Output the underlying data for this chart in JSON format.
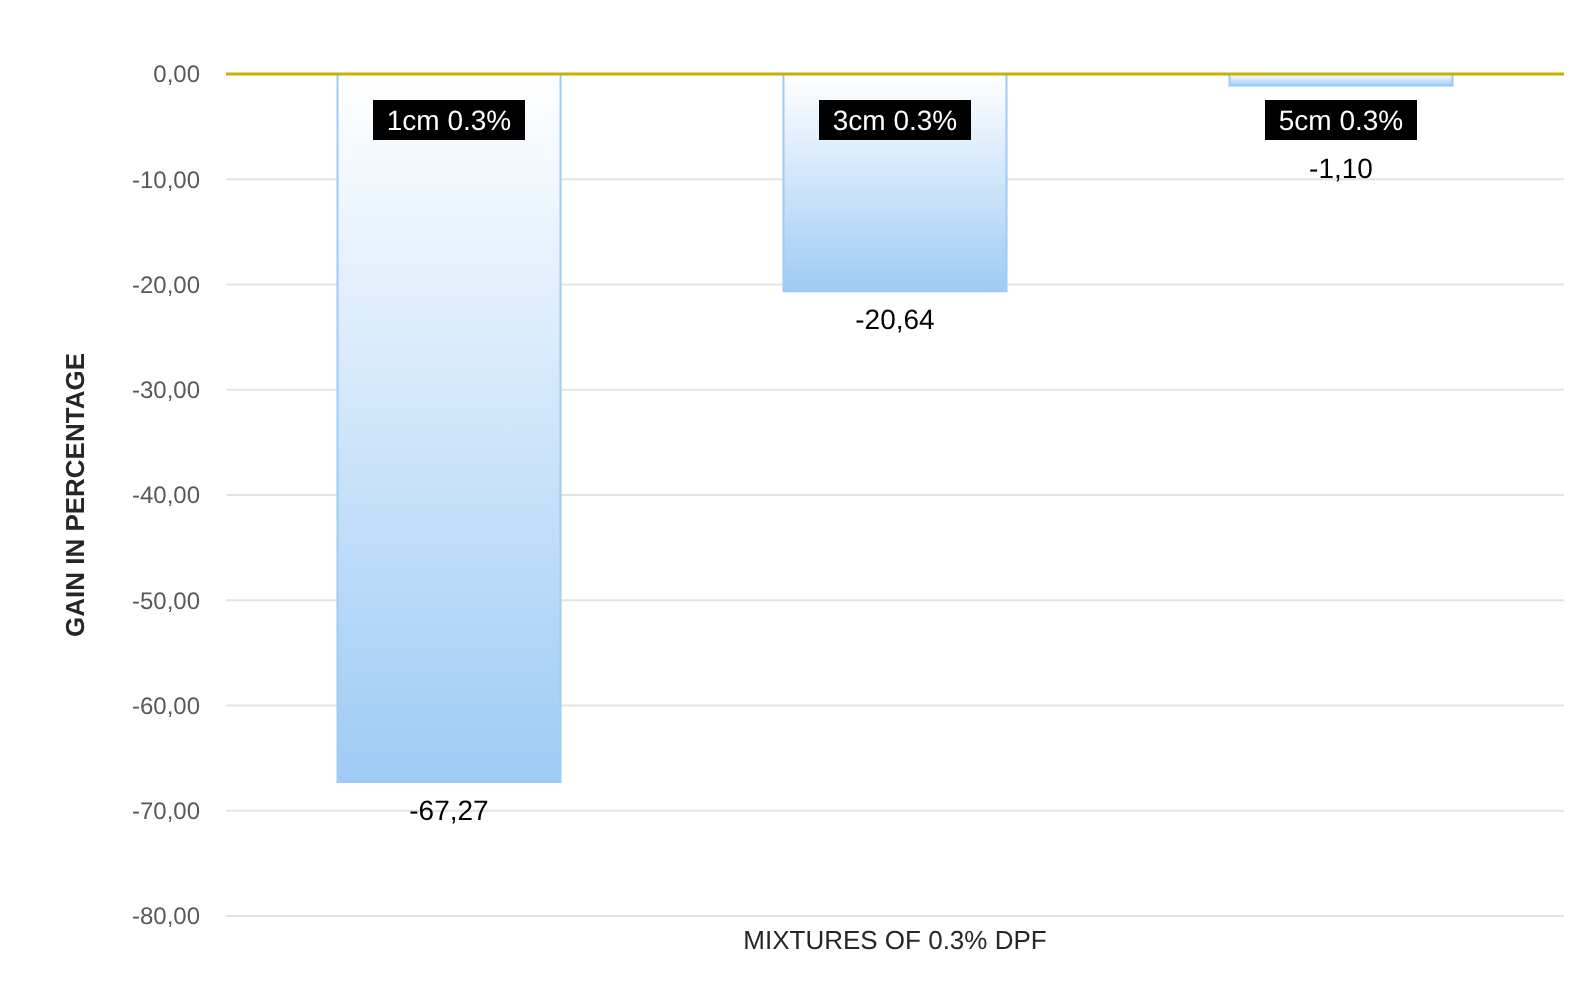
{
  "chart_data": {
    "type": "bar",
    "xlabel": "MIXTURES OF 0.3% DPF",
    "ylabel": "GAIN IN PERCENTAGE",
    "categories": [
      "1cm 0.3%",
      "3cm 0.3%",
      "5cm 0.3%"
    ],
    "values": [
      -67.27,
      -20.64,
      -1.1
    ],
    "value_labels": [
      "-67,27",
      "-20,64",
      "-1,10"
    ],
    "color": "#9ecbf5",
    "ylim": [
      -80,
      0
    ],
    "yticks": [
      {
        "value": 0,
        "label": "0,00"
      },
      {
        "value": -10,
        "label": "-10,00"
      },
      {
        "value": -20,
        "label": "-20,00"
      },
      {
        "value": -30,
        "label": "-30,00"
      },
      {
        "value": -40,
        "label": "-40,00"
      },
      {
        "value": -50,
        "label": "-50,00"
      },
      {
        "value": -60,
        "label": "-60,00"
      },
      {
        "value": -70,
        "label": "-70,00"
      },
      {
        "value": -80,
        "label": "-80,00"
      }
    ],
    "grid": "y"
  }
}
